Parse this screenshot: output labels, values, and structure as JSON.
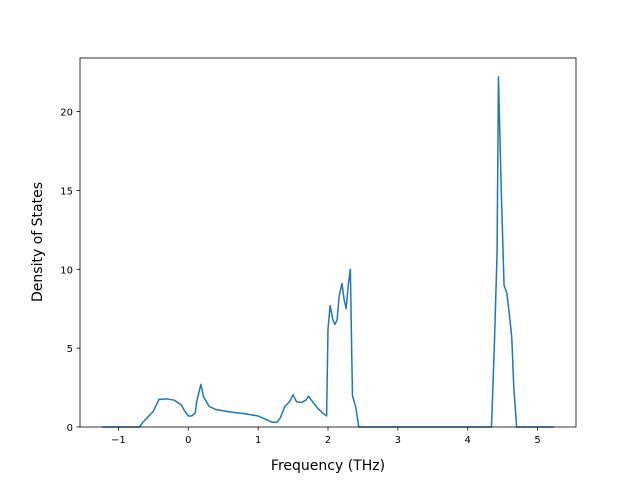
{
  "chart_data": {
    "type": "line",
    "x_label": "Frequency (THz)",
    "y_label": "Density of States",
    "x": [
      -1.23,
      -0.7,
      -0.65,
      -0.5,
      -0.42,
      -0.3,
      -0.2,
      -0.1,
      -0.05,
      0.0,
      0.05,
      0.1,
      0.12,
      0.18,
      0.22,
      0.3,
      0.4,
      0.6,
      0.8,
      1.0,
      1.1,
      1.2,
      1.27,
      1.32,
      1.38,
      1.45,
      1.5,
      1.55,
      1.62,
      1.68,
      1.72,
      1.78,
      1.85,
      1.92,
      1.98,
      2.0,
      2.03,
      2.07,
      2.1,
      2.13,
      2.16,
      2.2,
      2.23,
      2.26,
      2.29,
      2.32,
      2.35,
      2.4,
      2.44,
      3.0,
      4.0,
      4.34,
      4.38,
      4.42,
      4.44,
      4.48,
      4.52,
      4.56,
      4.6,
      4.63,
      4.66,
      4.7,
      5.23
    ],
    "series": [
      {
        "color": "#1f77b4",
        "values": [
          0,
          0,
          0.3,
          1.0,
          1.75,
          1.78,
          1.7,
          1.4,
          1.0,
          0.7,
          0.7,
          0.9,
          1.6,
          2.7,
          1.9,
          1.3,
          1.1,
          0.95,
          0.85,
          0.7,
          0.5,
          0.3,
          0.3,
          0.6,
          1.3,
          1.6,
          2.05,
          1.6,
          1.55,
          1.7,
          1.95,
          1.6,
          1.2,
          0.9,
          0.7,
          6.2,
          7.7,
          6.8,
          6.5,
          6.8,
          8.3,
          9.1,
          8.1,
          7.5,
          9.0,
          10.0,
          2.0,
          1.2,
          0,
          0,
          0,
          0,
          5,
          11,
          22.2,
          15,
          9,
          8.5,
          7,
          5.7,
          2.5,
          0,
          0
        ]
      }
    ],
    "xlim": [
      -1.55,
      5.55
    ],
    "ylim": [
      0,
      23.4
    ],
    "xticks": [
      -1,
      0,
      1,
      2,
      3,
      4,
      5
    ],
    "yticks": [
      0,
      5,
      10,
      15,
      20
    ]
  }
}
